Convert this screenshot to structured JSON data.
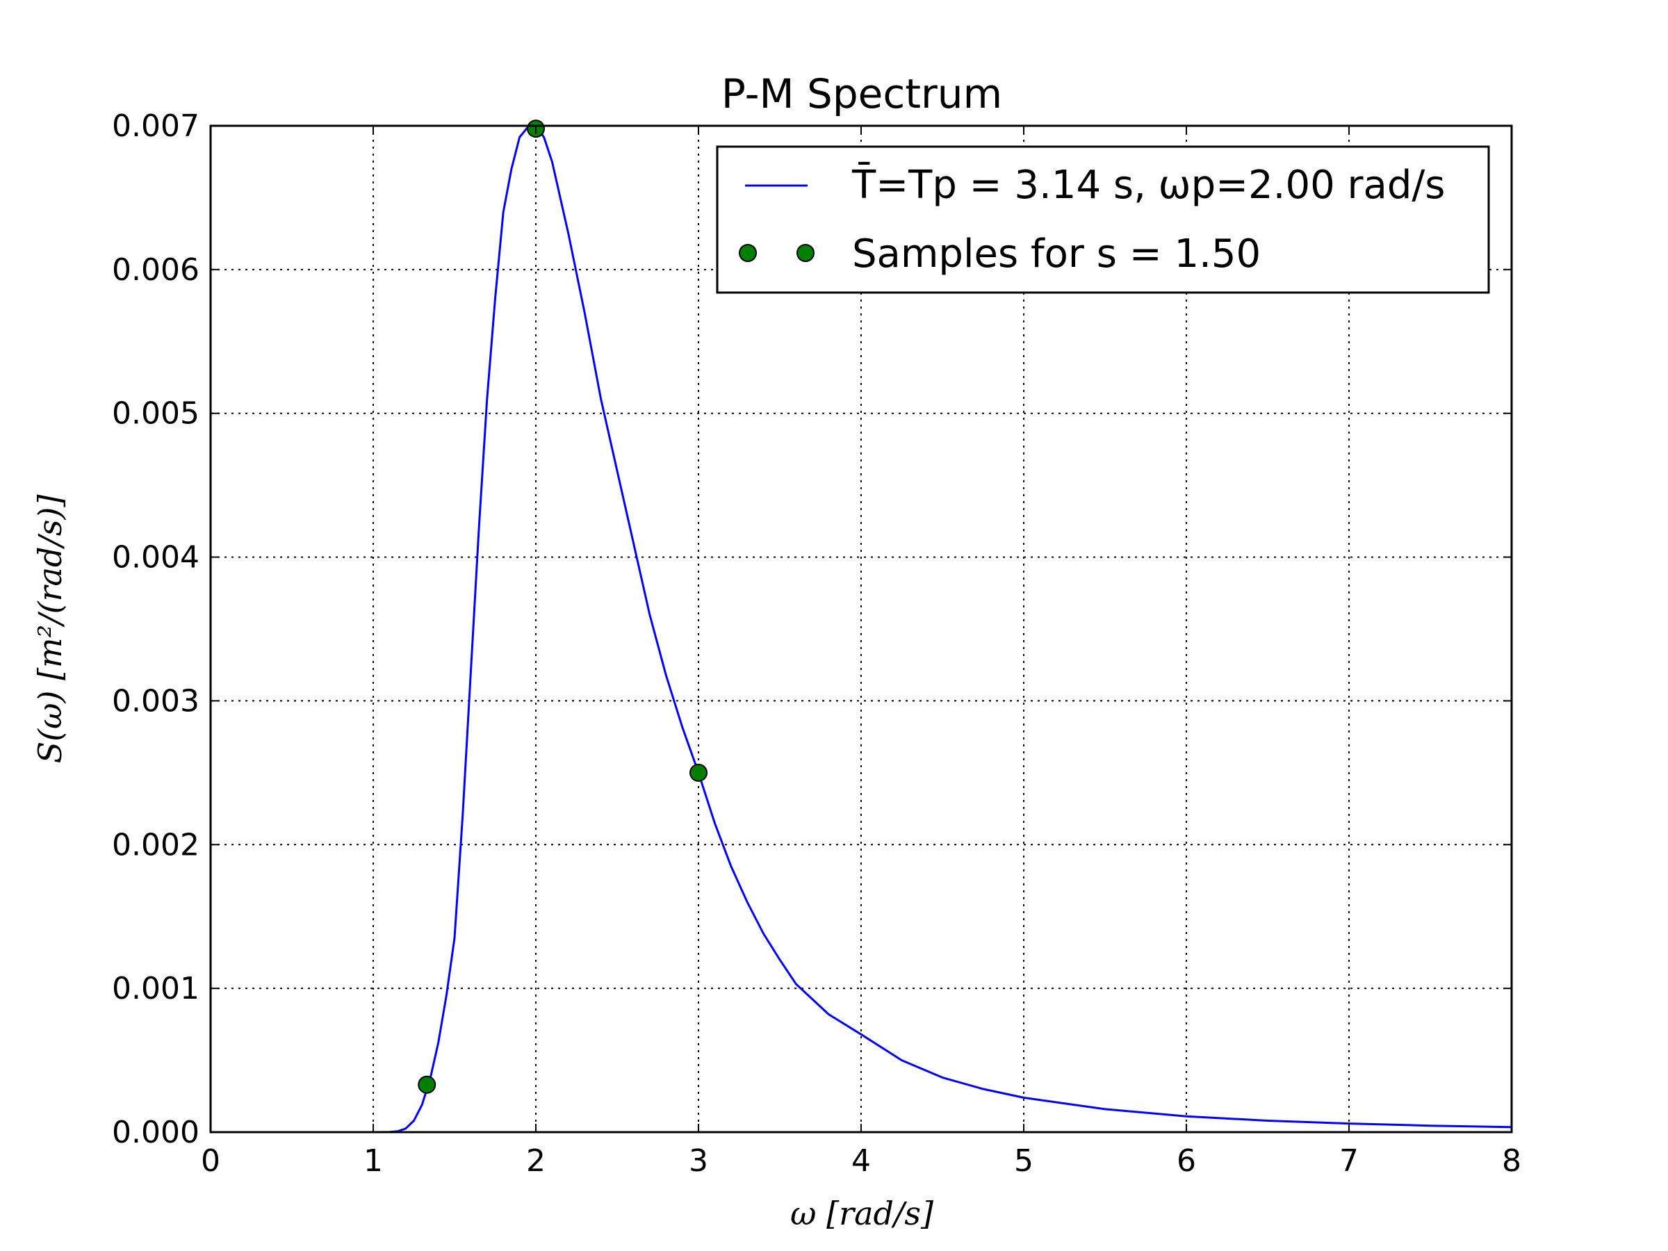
{
  "chart_data": {
    "type": "line",
    "title": "P-M Spectrum",
    "xlabel": "ω [rad/s]",
    "ylabel": "S(ω) [m²/(rad/s)]",
    "xlim": [
      0,
      8
    ],
    "ylim": [
      0,
      0.007
    ],
    "xticks": [
      0,
      1,
      2,
      3,
      4,
      5,
      6,
      7,
      8
    ],
    "xtick_labels": [
      "0",
      "1",
      "2",
      "3",
      "4",
      "5",
      "6",
      "7",
      "8"
    ],
    "yticks": [
      0,
      0.001,
      0.002,
      0.003,
      0.004,
      0.005,
      0.006,
      0.007
    ],
    "ytick_labels": [
      "0.000",
      "0.001",
      "0.002",
      "0.003",
      "0.004",
      "0.005",
      "0.006",
      "0.007"
    ],
    "grid": true,
    "legend_position": "top-right",
    "series": [
      {
        "name": "T̄=Tp = 3.14 s, ωp=2.00 rad/s",
        "kind": "line",
        "color": "#0000ff",
        "x": [
          0.0,
          1.0,
          1.1,
          1.15,
          1.2,
          1.25,
          1.3,
          1.35,
          1.4,
          1.45,
          1.5,
          1.55,
          1.6,
          1.65,
          1.7,
          1.75,
          1.8,
          1.85,
          1.9,
          1.95,
          2.0,
          2.05,
          2.1,
          2.2,
          2.3,
          2.4,
          2.5,
          2.6,
          2.7,
          2.8,
          2.9,
          3.0,
          3.1,
          3.2,
          3.3,
          3.4,
          3.5,
          3.6,
          3.8,
          4.0,
          4.25,
          4.5,
          4.75,
          5.0,
          5.5,
          6.0,
          6.5,
          7.0,
          7.5,
          8.0
        ],
        "y": [
          0.0,
          0.0,
          1e-06,
          6e-06,
          2.5e-05,
          8e-05,
          0.00019,
          0.00037,
          0.00062,
          0.00095,
          0.00135,
          0.0022,
          0.0032,
          0.0042,
          0.0051,
          0.0058,
          0.0064,
          0.0067,
          0.00692,
          0.00699,
          0.007,
          0.00692,
          0.00675,
          0.00625,
          0.0057,
          0.0051,
          0.0046,
          0.0041,
          0.0036,
          0.00318,
          0.00282,
          0.0025,
          0.00215,
          0.00185,
          0.0016,
          0.00138,
          0.0012,
          0.00103,
          0.00082,
          0.00068,
          0.0005,
          0.00038,
          0.0003,
          0.00024,
          0.00016,
          0.00011,
          8e-05,
          6e-05,
          4.5e-05,
          3.5e-05
        ]
      },
      {
        "name": "Samples for s = 1.50",
        "kind": "scatter",
        "color": "#008000",
        "x": [
          1.33,
          2.0,
          3.0
        ],
        "y": [
          0.00033,
          0.00698,
          0.0025
        ]
      }
    ]
  }
}
